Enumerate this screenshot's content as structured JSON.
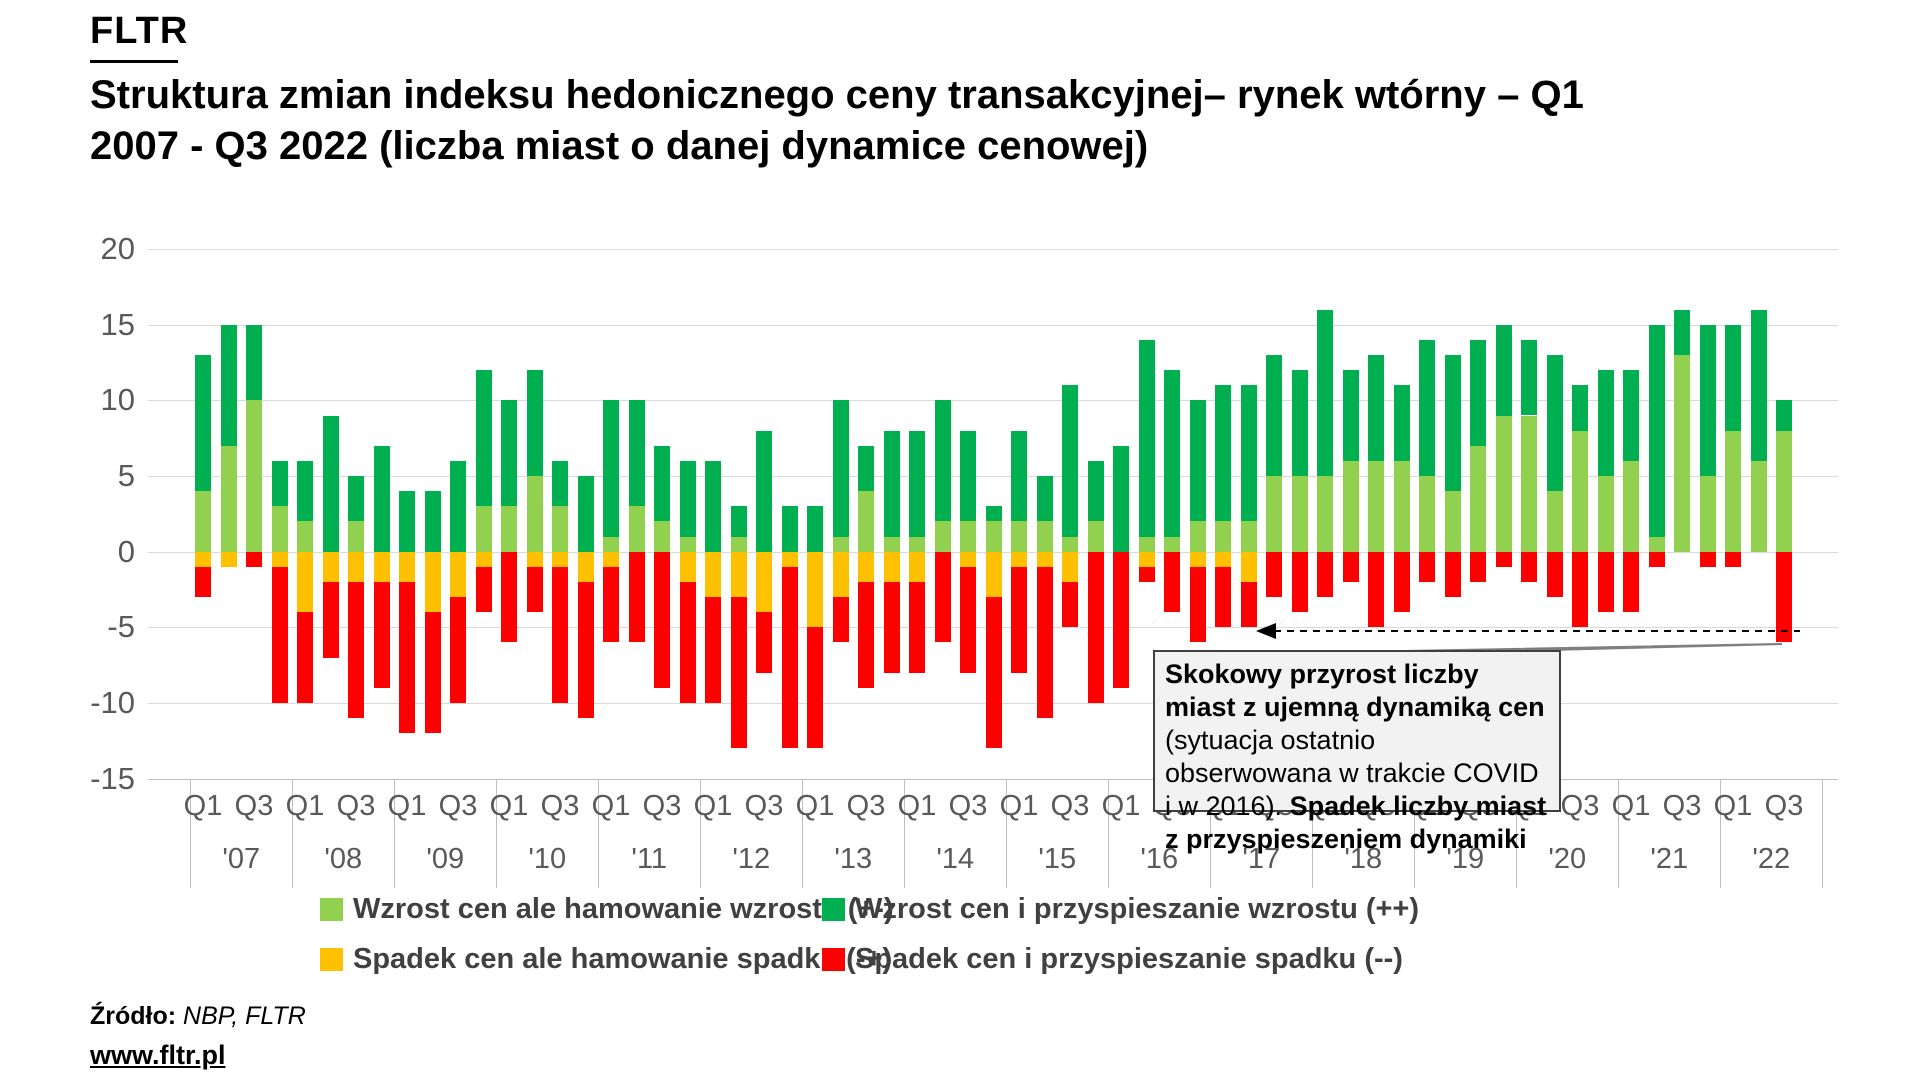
{
  "logo": "FLTR",
  "title": "Struktura zmian indeksu hedonicznego ceny transakcyjnej– rynek wtórny – Q1 2007 - Q3 2022 (liczba miast o danej dynamice cenowej)",
  "annotation": {
    "bold1": "Skokowy przyrost liczby miast z ujemną dynamiką cen",
    "regular1": " (sytuacja ostatnio obserwowana w trakcie COVID i w 2016). ",
    "bold2": "Spadek liczby miast z przyspieszeniem dynamiki"
  },
  "source": {
    "label": "Źródło:",
    "value": " NBP, FLTR"
  },
  "website": "www.fltr.pl",
  "legend": [
    {
      "key": "plus_minus",
      "label": "Wzrost cen ale hamowanie wzrostu (+-)",
      "color": "#92D050"
    },
    {
      "key": "plus_plus",
      "label": "Wzrost cen i przyspieszanie wzrostu (++)",
      "color": "#00B050"
    },
    {
      "key": "minus_plus",
      "label": "Spadek cen ale hamowanie spadku (-+)",
      "color": "#FFC000"
    },
    {
      "key": "minus_minus",
      "label": "Spadek cen i przyspieszanie spadku (--)",
      "color": "#FF0000"
    }
  ],
  "chart_data": {
    "type": "bar",
    "subtype": "stacked-diverging",
    "title": "Struktura zmian indeksu hedonicznego ceny transakcyjnej – rynek wtórny – Q1 2007 - Q3 2022",
    "ylabel": "liczba miast",
    "ylim": [
      -15,
      20
    ],
    "y_ticks": [
      20,
      15,
      10,
      5,
      0,
      -5,
      -10,
      -15
    ],
    "grid": true,
    "legend_position": "bottom",
    "quarter_tick_labels": [
      "Q1",
      "Q3"
    ],
    "years": [
      "'07",
      "'08",
      "'09",
      "'10",
      "'11",
      "'12",
      "'13",
      "'14",
      "'15",
      "'16",
      "'17",
      "'18",
      "'19",
      "'20",
      "'21",
      "'22"
    ],
    "series": [
      {
        "name": "Wzrost cen ale hamowanie wzrostu (+-)",
        "key": "plus_minus",
        "color": "#92D050"
      },
      {
        "name": "Wzrost cen i przyspieszanie wzrostu (++)",
        "key": "plus_plus",
        "color": "#00B050"
      },
      {
        "name": "Spadek cen ale hamowanie spadku (-+)",
        "key": "minus_plus",
        "color": "#FFC000"
      },
      {
        "name": "Spadek cen i przyspieszanie spadku (--)",
        "key": "minus_minus",
        "color": "#FF0000"
      }
    ],
    "quarters": [
      {
        "label": "2007 Q1",
        "plus_minus": 4,
        "plus_plus": 9,
        "minus_plus": -1,
        "minus_minus": -2
      },
      {
        "label": "2007 Q2",
        "plus_minus": 7,
        "plus_plus": 8,
        "minus_plus": -1,
        "minus_minus": 0
      },
      {
        "label": "2007 Q3",
        "plus_minus": 10,
        "plus_plus": 5,
        "minus_plus": 0,
        "minus_minus": -1
      },
      {
        "label": "2007 Q4",
        "plus_minus": 3,
        "plus_plus": 3,
        "minus_plus": -1,
        "minus_minus": -9
      },
      {
        "label": "2008 Q1",
        "plus_minus": 2,
        "plus_plus": 4,
        "minus_plus": -4,
        "minus_minus": -6
      },
      {
        "label": "2008 Q2",
        "plus_minus": 0,
        "plus_plus": 9,
        "minus_plus": -2,
        "minus_minus": -5
      },
      {
        "label": "2008 Q3",
        "plus_minus": 2,
        "plus_plus": 3,
        "minus_plus": -2,
        "minus_minus": -9
      },
      {
        "label": "2008 Q4",
        "plus_minus": 0,
        "plus_plus": 7,
        "minus_plus": -2,
        "minus_minus": -7
      },
      {
        "label": "2009 Q1",
        "plus_minus": 0,
        "plus_plus": 4,
        "minus_plus": -2,
        "minus_minus": -10
      },
      {
        "label": "2009 Q2",
        "plus_minus": 0,
        "plus_plus": 4,
        "minus_plus": -4,
        "minus_minus": -8
      },
      {
        "label": "2009 Q3",
        "plus_minus": 0,
        "plus_plus": 6,
        "minus_plus": -3,
        "minus_minus": -7
      },
      {
        "label": "2009 Q4",
        "plus_minus": 3,
        "plus_plus": 9,
        "minus_plus": -1,
        "minus_minus": -3
      },
      {
        "label": "2010 Q1",
        "plus_minus": 3,
        "plus_plus": 7,
        "minus_plus": 0,
        "minus_minus": -6
      },
      {
        "label": "2010 Q2",
        "plus_minus": 5,
        "plus_plus": 7,
        "minus_plus": -1,
        "minus_minus": -3
      },
      {
        "label": "2010 Q3",
        "plus_minus": 3,
        "plus_plus": 3,
        "minus_plus": -1,
        "minus_minus": -9
      },
      {
        "label": "2010 Q4",
        "plus_minus": 0,
        "plus_plus": 5,
        "minus_plus": -2,
        "minus_minus": -9
      },
      {
        "label": "2011 Q1",
        "plus_minus": 1,
        "plus_plus": 9,
        "minus_plus": -1,
        "minus_minus": -5
      },
      {
        "label": "2011 Q2",
        "plus_minus": 3,
        "plus_plus": 7,
        "minus_plus": 0,
        "minus_minus": -6
      },
      {
        "label": "2011 Q3",
        "plus_minus": 2,
        "plus_plus": 5,
        "minus_plus": 0,
        "minus_minus": -9
      },
      {
        "label": "2011 Q4",
        "plus_minus": 1,
        "plus_plus": 5,
        "minus_plus": -2,
        "minus_minus": -8
      },
      {
        "label": "2012 Q1",
        "plus_minus": 0,
        "plus_plus": 6,
        "minus_plus": -3,
        "minus_minus": -7
      },
      {
        "label": "2012 Q2",
        "plus_minus": 1,
        "plus_plus": 2,
        "minus_plus": -3,
        "minus_minus": -10
      },
      {
        "label": "2012 Q3",
        "plus_minus": 0,
        "plus_plus": 8,
        "minus_plus": -4,
        "minus_minus": -4
      },
      {
        "label": "2012 Q4",
        "plus_minus": 0,
        "plus_plus": 3,
        "minus_plus": -1,
        "minus_minus": -12
      },
      {
        "label": "2013 Q1",
        "plus_minus": 0,
        "plus_plus": 3,
        "minus_plus": -5,
        "minus_minus": -8
      },
      {
        "label": "2013 Q2",
        "plus_minus": 1,
        "plus_plus": 9,
        "minus_plus": -3,
        "minus_minus": -3
      },
      {
        "label": "2013 Q3",
        "plus_minus": 4,
        "plus_plus": 3,
        "minus_plus": -2,
        "minus_minus": -7
      },
      {
        "label": "2013 Q4",
        "plus_minus": 1,
        "plus_plus": 7,
        "minus_plus": -2,
        "minus_minus": -6
      },
      {
        "label": "2014 Q1",
        "plus_minus": 1,
        "plus_plus": 7,
        "minus_plus": -2,
        "minus_minus": -6
      },
      {
        "label": "2014 Q2",
        "plus_minus": 2,
        "plus_plus": 8,
        "minus_plus": 0,
        "minus_minus": -6
      },
      {
        "label": "2014 Q3",
        "plus_minus": 2,
        "plus_plus": 6,
        "minus_plus": -1,
        "minus_minus": -7
      },
      {
        "label": "2014 Q4",
        "plus_minus": 2,
        "plus_plus": 1,
        "minus_plus": -3,
        "minus_minus": -10
      },
      {
        "label": "2015 Q1",
        "plus_minus": 2,
        "plus_plus": 6,
        "minus_plus": -1,
        "minus_minus": -7
      },
      {
        "label": "2015 Q2",
        "plus_minus": 2,
        "plus_plus": 3,
        "minus_plus": -1,
        "minus_minus": -10
      },
      {
        "label": "2015 Q3",
        "plus_minus": 1,
        "plus_plus": 10,
        "minus_plus": -2,
        "minus_minus": -3
      },
      {
        "label": "2015 Q4",
        "plus_minus": 2,
        "plus_plus": 4,
        "minus_plus": 0,
        "minus_minus": -10
      },
      {
        "label": "2016 Q1",
        "plus_minus": 0,
        "plus_plus": 7,
        "minus_plus": 0,
        "minus_minus": -9
      },
      {
        "label": "2016 Q2",
        "plus_minus": 1,
        "plus_plus": 13,
        "minus_plus": -1,
        "minus_minus": -1
      },
      {
        "label": "2016 Q3",
        "plus_minus": 1,
        "plus_plus": 11,
        "minus_plus": 0,
        "minus_minus": -4
      },
      {
        "label": "2016 Q4",
        "plus_minus": 2,
        "plus_plus": 8,
        "minus_plus": -1,
        "minus_minus": -5
      },
      {
        "label": "2017 Q1",
        "plus_minus": 2,
        "plus_plus": 9,
        "minus_plus": -1,
        "minus_minus": -4
      },
      {
        "label": "2017 Q2",
        "plus_minus": 2,
        "plus_plus": 9,
        "minus_plus": -2,
        "minus_minus": -3
      },
      {
        "label": "2017 Q3",
        "plus_minus": 5,
        "plus_plus": 8,
        "minus_plus": 0,
        "minus_minus": -3
      },
      {
        "label": "2017 Q4",
        "plus_minus": 5,
        "plus_plus": 7,
        "minus_plus": 0,
        "minus_minus": -4
      },
      {
        "label": "2018 Q1",
        "plus_minus": 5,
        "plus_plus": 11,
        "minus_plus": 0,
        "minus_minus": -3
      },
      {
        "label": "2018 Q2",
        "plus_minus": 6,
        "plus_plus": 6,
        "minus_plus": 0,
        "minus_minus": -2
      },
      {
        "label": "2018 Q3",
        "plus_minus": 6,
        "plus_plus": 7,
        "minus_plus": 0,
        "minus_minus": -5
      },
      {
        "label": "2018 Q4",
        "plus_minus": 6,
        "plus_plus": 5,
        "minus_plus": 0,
        "minus_minus": -4
      },
      {
        "label": "2019 Q1",
        "plus_minus": 5,
        "plus_plus": 9,
        "minus_plus": 0,
        "minus_minus": -2
      },
      {
        "label": "2019 Q2",
        "plus_minus": 4,
        "plus_plus": 9,
        "minus_plus": 0,
        "minus_minus": -3
      },
      {
        "label": "2019 Q3",
        "plus_minus": 7,
        "plus_plus": 7,
        "minus_plus": 0,
        "minus_minus": -2
      },
      {
        "label": "2019 Q4",
        "plus_minus": 9,
        "plus_plus": 6,
        "minus_plus": 0,
        "minus_minus": -1
      },
      {
        "label": "2020 Q1",
        "plus_minus": 9,
        "plus_plus": 5,
        "minus_plus": 0,
        "minus_minus": -2
      },
      {
        "label": "2020 Q2",
        "plus_minus": 4,
        "plus_plus": 9,
        "minus_plus": 0,
        "minus_minus": -3
      },
      {
        "label": "2020 Q3",
        "plus_minus": 8,
        "plus_plus": 3,
        "minus_plus": 0,
        "minus_minus": -5
      },
      {
        "label": "2020 Q4",
        "plus_minus": 5,
        "plus_plus": 7,
        "minus_plus": 0,
        "minus_minus": -4
      },
      {
        "label": "2021 Q1",
        "plus_minus": 6,
        "plus_plus": 6,
        "minus_plus": 0,
        "minus_minus": -4
      },
      {
        "label": "2021 Q2",
        "plus_minus": 1,
        "plus_plus": 14,
        "minus_plus": 0,
        "minus_minus": -1
      },
      {
        "label": "2021 Q3",
        "plus_minus": 13,
        "plus_plus": 3,
        "minus_plus": 0,
        "minus_minus": 0
      },
      {
        "label": "2021 Q4",
        "plus_minus": 5,
        "plus_plus": 10,
        "minus_plus": 0,
        "minus_minus": -1
      },
      {
        "label": "2022 Q1",
        "plus_minus": 8,
        "plus_plus": 7,
        "minus_plus": 0,
        "minus_minus": -1
      },
      {
        "label": "2022 Q2",
        "plus_minus": 6,
        "plus_plus": 10,
        "minus_plus": 0,
        "minus_minus": 0
      },
      {
        "label": "2022 Q3",
        "plus_minus": 8,
        "plus_plus": 2,
        "minus_plus": 0,
        "minus_minus": -6
      }
    ]
  }
}
